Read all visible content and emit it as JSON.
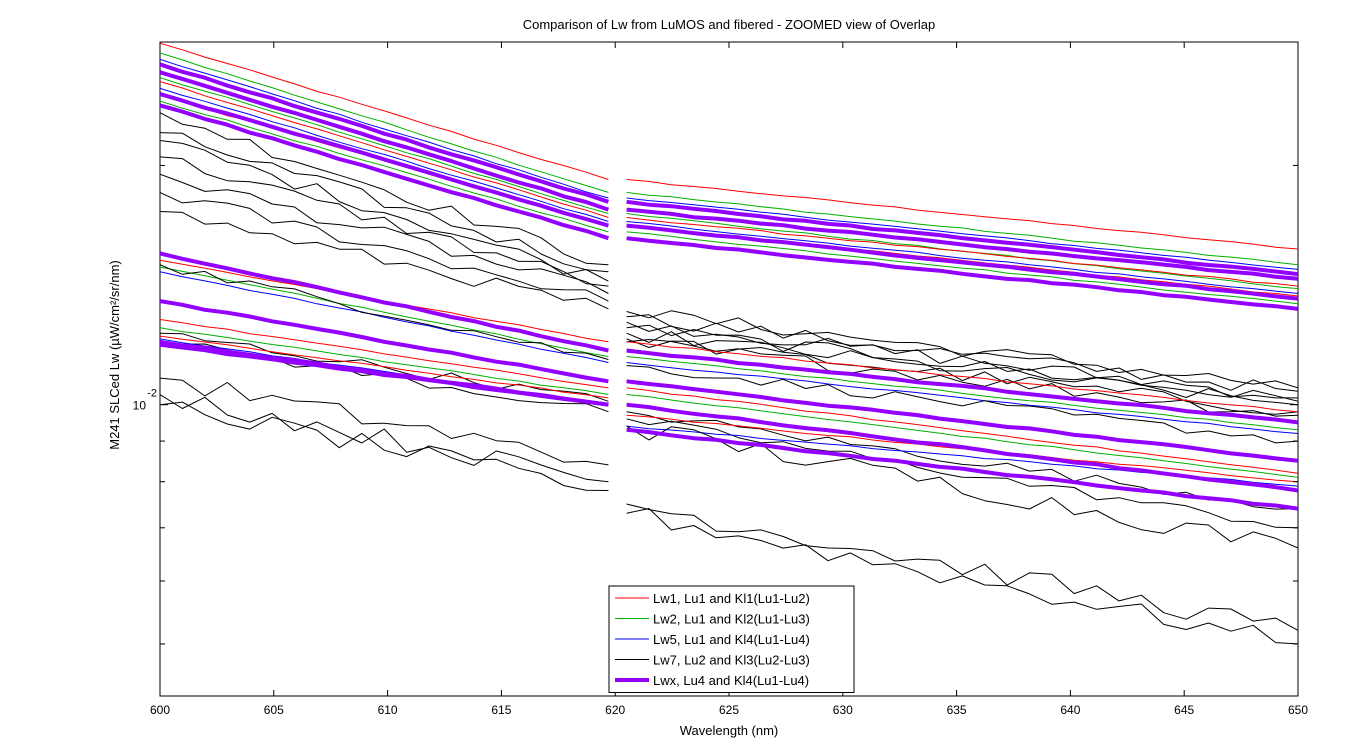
{
  "chart_data": {
    "type": "line",
    "title": "Comparison of Lw from LuMOS and fibered - ZOOMED view of Overlap",
    "xlabel": "Wavelength (nm)",
    "ylabel": "M241 SLCed Lw (µW/cm²/sr/nm)",
    "xlim": [
      600,
      650
    ],
    "ylim": [
      0.0043,
      0.0286
    ],
    "yscale": "log",
    "gap_between_nm": [
      619.7,
      620.5
    ],
    "x_ticks": [
      "600",
      "605",
      "610",
      "615",
      "620",
      "625",
      "630",
      "635",
      "640",
      "645",
      "650"
    ],
    "y_tick_label": {
      "base": "10",
      "exponent": "-2"
    },
    "grid": false,
    "legend_position": "bottom-center",
    "legend": [
      {
        "label": "Lw1, Lu1 and Kl1(Lu1-Lu2)",
        "color": "#ff0000",
        "width": 1
      },
      {
        "label": "Lw2, Lu1 and Kl2(Lu1-Lu3)",
        "color": "#00b000",
        "width": 1
      },
      {
        "label": "Lw5, Lu1 and Kl4(Lu1-Lu4)",
        "color": "#0000ff",
        "width": 1
      },
      {
        "label": "Lw7, Lu2 and Kl3(Lu2-Lu3)",
        "color": "#000000",
        "width": 1
      },
      {
        "label": "Lwx, Lu4 and Kl4(Lu1-Lu4)",
        "color": "#9400ff",
        "width": 4
      }
    ],
    "series": [
      {
        "color": "#ff0000",
        "left": [
          0.0285,
          0.0192
        ],
        "right": [
          0.0192,
          0.0157
        ],
        "noise": 0.002
      },
      {
        "color": "#00b000",
        "left": [
          0.0277,
          0.0185
        ],
        "right": [
          0.0185,
          0.015
        ],
        "noise": 0.002
      },
      {
        "color": "#0000ff",
        "left": [
          0.0272,
          0.0182
        ],
        "right": [
          0.0182,
          0.0148
        ],
        "noise": 0.002
      },
      {
        "color": "#9400ff",
        "left": [
          0.0268,
          0.018
        ],
        "right": [
          0.018,
          0.0146
        ],
        "noise": 0.002,
        "width": 4
      },
      {
        "color": "#9400ff",
        "left": [
          0.0262,
          0.0176
        ],
        "right": [
          0.0176,
          0.0144
        ],
        "noise": 0.002,
        "width": 4
      },
      {
        "color": "#00b000",
        "left": [
          0.0258,
          0.0174
        ],
        "right": [
          0.0174,
          0.014
        ],
        "noise": 0.002
      },
      {
        "color": "#ff0000",
        "left": [
          0.0255,
          0.0172
        ],
        "right": [
          0.0172,
          0.0141
        ],
        "noise": 0.002
      },
      {
        "color": "#0000ff",
        "left": [
          0.025,
          0.017
        ],
        "right": [
          0.017,
          0.0138
        ],
        "noise": 0.002
      },
      {
        "color": "#9400ff",
        "left": [
          0.0246,
          0.0168
        ],
        "right": [
          0.0168,
          0.0136
        ],
        "noise": 0.002,
        "width": 4
      },
      {
        "color": "#ff0000",
        "left": [
          0.0245,
          0.0168
        ],
        "right": [
          0.0168,
          0.0137
        ],
        "noise": 0.002
      },
      {
        "color": "#00b000",
        "left": [
          0.0241,
          0.0165
        ],
        "right": [
          0.0165,
          0.0134
        ],
        "noise": 0.002
      },
      {
        "color": "#9400ff",
        "left": [
          0.0238,
          0.0162
        ],
        "right": [
          0.0162,
          0.0132
        ],
        "noise": 0.002,
        "width": 4
      },
      {
        "color": "#000000",
        "left": [
          0.0233,
          0.015
        ],
        "right": [
          0.0131,
          0.0105
        ],
        "noise": 0.02
      },
      {
        "color": "#000000",
        "left": [
          0.022,
          0.0147
        ],
        "right": [
          0.0129,
          0.0104
        ],
        "noise": 0.02
      },
      {
        "color": "#000000",
        "left": [
          0.0215,
          0.0143
        ],
        "right": [
          0.0127,
          0.0102
        ],
        "noise": 0.02
      },
      {
        "color": "#000000",
        "left": [
          0.0205,
          0.0141
        ],
        "right": [
          0.0125,
          0.0101
        ],
        "noise": 0.02
      },
      {
        "color": "#000000",
        "left": [
          0.0195,
          0.0138
        ],
        "right": [
          0.0123,
          0.01
        ],
        "noise": 0.02
      },
      {
        "color": "#000000",
        "left": [
          0.0185,
          0.0135
        ],
        "right": [
          0.0121,
          0.0098
        ],
        "noise": 0.02
      },
      {
        "color": "#000000",
        "left": [
          0.0175,
          0.0132
        ],
        "right": [
          0.012,
          0.0097
        ],
        "noise": 0.02
      },
      {
        "color": "#9400ff",
        "left": [
          0.0155,
          0.0117
        ],
        "right": [
          0.0117,
          0.0095
        ],
        "noise": 0.002,
        "width": 4
      },
      {
        "color": "#ff0000",
        "left": [
          0.0152,
          0.012
        ],
        "right": [
          0.012,
          0.0098
        ],
        "noise": 0.002
      },
      {
        "color": "#00b000",
        "left": [
          0.0149,
          0.0115
        ],
        "right": [
          0.0115,
          0.0093
        ],
        "noise": 0.002
      },
      {
        "color": "#0000ff",
        "left": [
          0.0147,
          0.0113
        ],
        "right": [
          0.0113,
          0.0092
        ],
        "noise": 0.002
      },
      {
        "color": "#000000",
        "left": [
          0.015,
          0.0114
        ],
        "right": [
          0.0112,
          0.009
        ],
        "noise": 0.015
      },
      {
        "color": "#9400ff",
        "left": [
          0.0135,
          0.0107
        ],
        "right": [
          0.0107,
          0.0085
        ],
        "noise": 0.002,
        "width": 4
      },
      {
        "color": "#ff0000",
        "left": [
          0.0128,
          0.0105
        ],
        "right": [
          0.0105,
          0.0082
        ],
        "noise": 0.002
      },
      {
        "color": "#00b000",
        "left": [
          0.0125,
          0.0103
        ],
        "right": [
          0.0103,
          0.0081
        ],
        "noise": 0.002
      },
      {
        "color": "#9400ff",
        "left": [
          0.012,
          0.01
        ],
        "right": [
          0.01,
          0.0078
        ],
        "noise": 0.002,
        "width": 4
      },
      {
        "color": "#000000",
        "left": [
          0.0123,
          0.0101
        ],
        "right": [
          0.0098,
          0.0074
        ],
        "noise": 0.015
      },
      {
        "color": "#000000",
        "left": [
          0.012,
          0.0098
        ],
        "right": [
          0.0096,
          0.007
        ],
        "noise": 0.015
      },
      {
        "color": "#ff0000",
        "left": [
          0.0122,
          0.0102
        ],
        "right": [
          0.0097,
          0.008
        ],
        "noise": 0.002
      },
      {
        "color": "#0000ff",
        "left": [
          0.0121,
          0.01
        ],
        "right": [
          0.0094,
          0.0079
        ],
        "noise": 0.002
      },
      {
        "color": "#9400ff",
        "left": [
          0.0119,
          0.01
        ],
        "right": [
          0.0093,
          0.0074
        ],
        "noise": 0.002,
        "width": 4
      },
      {
        "color": "#000000",
        "left": [
          0.0108,
          0.0084
        ],
        "right": [
          0.0094,
          0.0066
        ],
        "noise": 0.03
      },
      {
        "color": "#000000",
        "left": [
          0.0103,
          0.008
        ],
        "right": [
          0.0075,
          0.0052
        ],
        "noise": 0.03
      },
      {
        "color": "#000000",
        "left": [
          0.01,
          0.0078
        ],
        "right": [
          0.0073,
          0.005
        ],
        "noise": 0.03
      }
    ]
  }
}
